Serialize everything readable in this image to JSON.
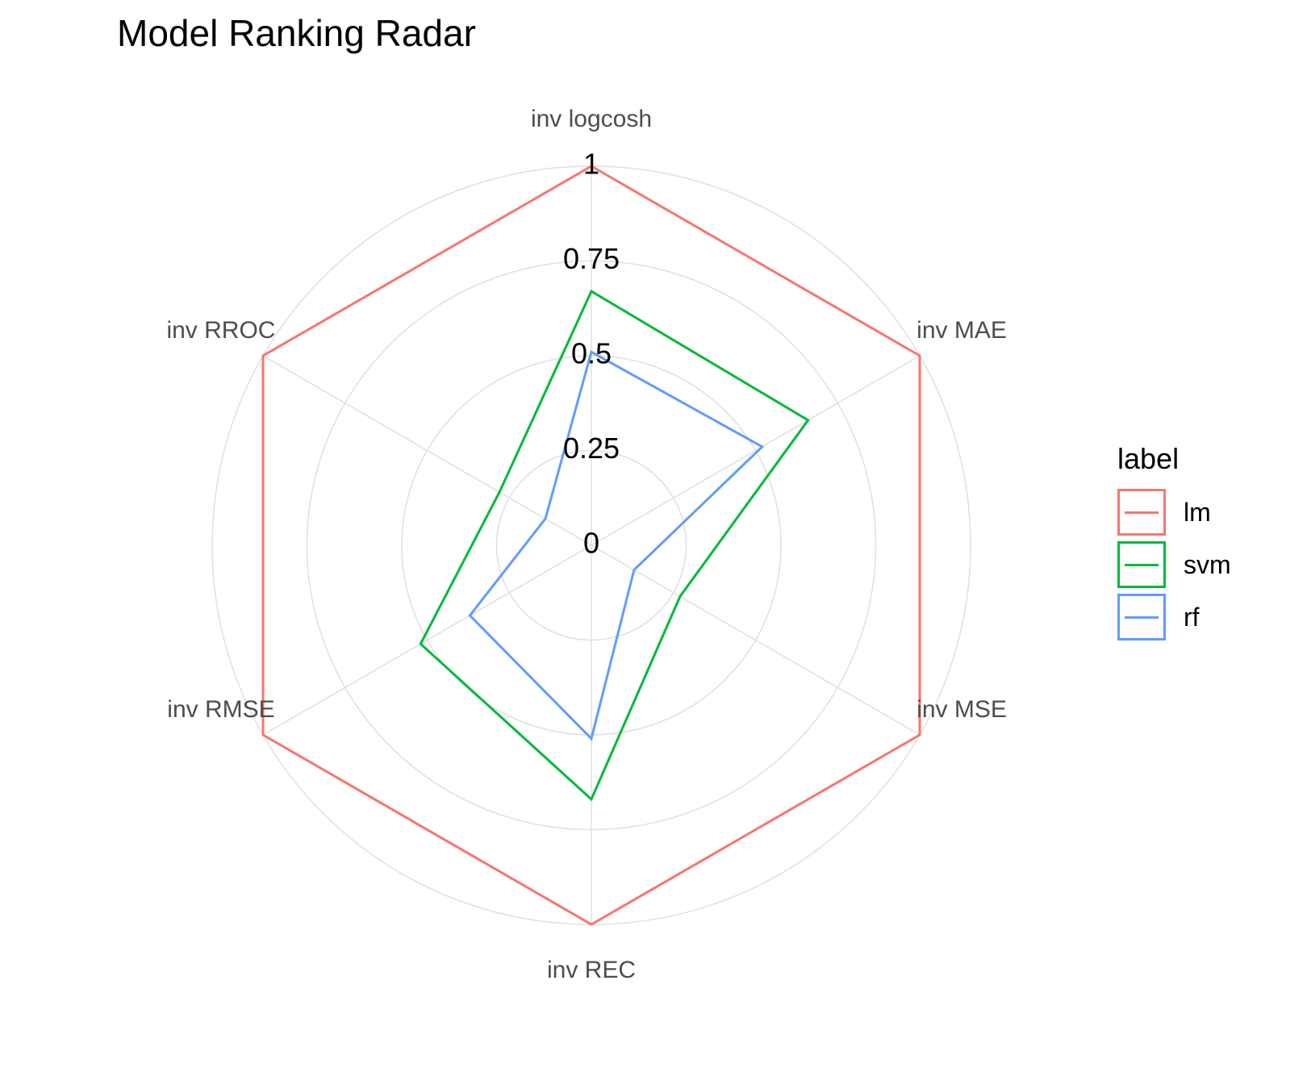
{
  "chart_data": {
    "type": "radar",
    "title": "Model Ranking Radar",
    "axes": [
      "inv logcosh",
      "inv MAE",
      "inv MSE",
      "inv REC",
      "inv RMSE",
      "inv RROC"
    ],
    "rticks": [
      "0",
      "0.25",
      "0.5",
      "0.75",
      "1"
    ],
    "rlim": [
      0,
      1
    ],
    "grid": true,
    "legend": {
      "title": "label",
      "position": "right"
    },
    "series": [
      {
        "name": "lm",
        "color": "#F8766D",
        "values": [
          1,
          1,
          1,
          1,
          1,
          1
        ]
      },
      {
        "name": "svm",
        "color": "#00BA38",
        "values": [
          0.67,
          0.66,
          0.27,
          0.67,
          0.52,
          0.28
        ]
      },
      {
        "name": "rf",
        "color": "#619CFF",
        "values": [
          0.51,
          0.52,
          0.13,
          0.51,
          0.37,
          0.14
        ]
      }
    ]
  }
}
